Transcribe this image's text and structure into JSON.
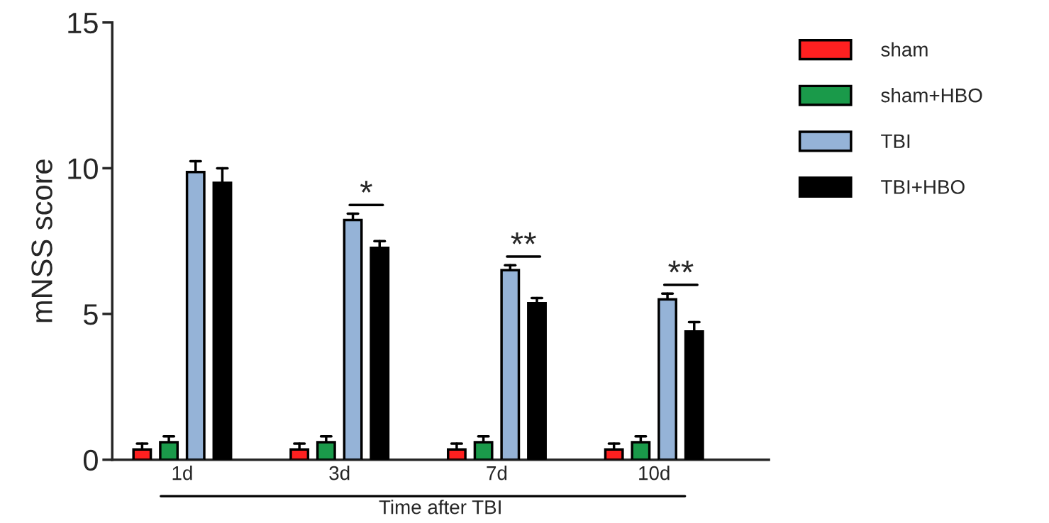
{
  "chart_data": {
    "type": "bar",
    "categories": [
      "1d",
      "3d",
      "7d",
      "10d"
    ],
    "xlabel": "Time after TBI",
    "ylabel": "mNSS score",
    "ylim": [
      0,
      15
    ],
    "yticks": [
      0,
      5,
      10,
      15
    ],
    "series": [
      {
        "name": "sham",
        "color": "#ff2020",
        "values": [
          0.35,
          0.35,
          0.35,
          0.35
        ],
        "errors": [
          [
            0.35,
            0.55
          ],
          [
            0.35,
            0.55
          ],
          [
            0.35,
            0.55
          ],
          [
            0.35,
            0.55
          ]
        ]
      },
      {
        "name": "sham+HBO",
        "color": "#1a9a4a",
        "values": [
          0.6,
          0.6,
          0.6,
          0.6
        ],
        "errors": [
          [
            0.6,
            0.8
          ],
          [
            0.6,
            0.8
          ],
          [
            0.6,
            0.8
          ],
          [
            0.6,
            0.8
          ]
        ]
      },
      {
        "name": "TBI",
        "color": "#95b3d7",
        "values": [
          9.87,
          8.22,
          6.5,
          5.5
        ],
        "errors": [
          [
            9.87,
            10.24
          ],
          [
            8.22,
            8.44
          ],
          [
            6.5,
            6.67
          ],
          [
            5.5,
            5.7
          ]
        ]
      },
      {
        "name": "TBI+HBO",
        "color": "#000000",
        "values": [
          9.5,
          7.27,
          5.37,
          4.4
        ],
        "errors": [
          [
            9.5,
            10.0
          ],
          [
            7.27,
            7.5
          ],
          [
            5.37,
            5.55
          ],
          [
            4.4,
            4.72
          ]
        ]
      }
    ],
    "annotations": [
      "*",
      "**",
      "**"
    ],
    "legend": "top right",
    "grid": false
  }
}
